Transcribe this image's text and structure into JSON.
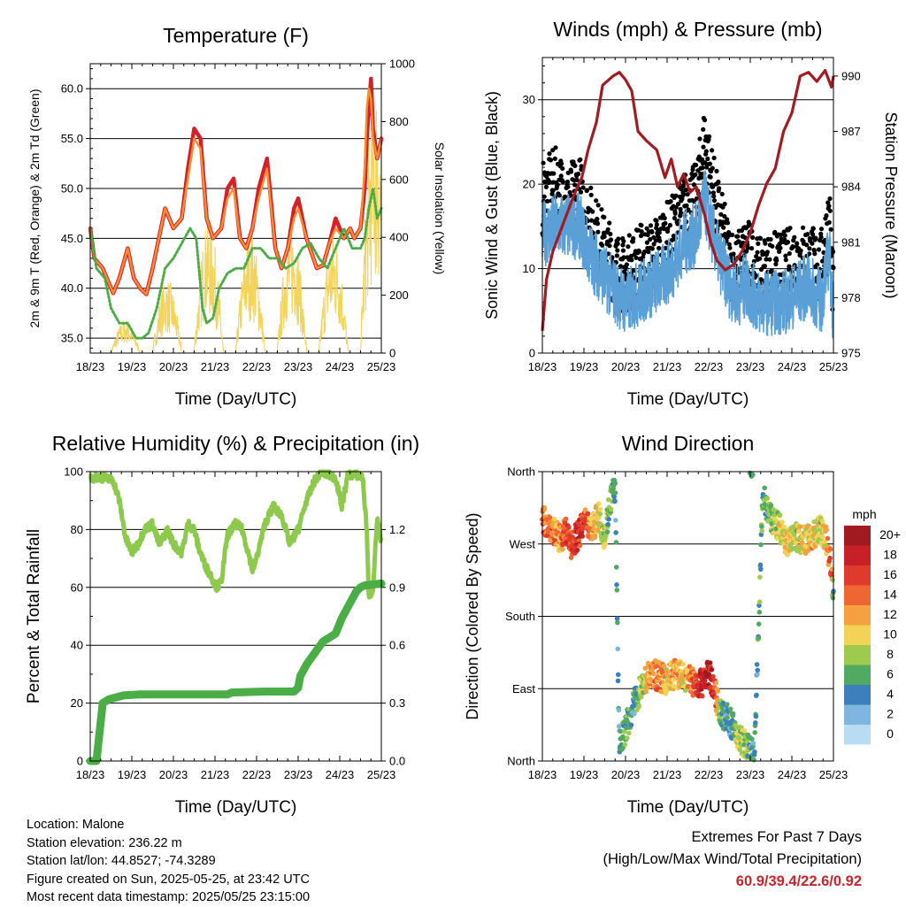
{
  "palette": {
    "red": "#d42027",
    "orange": "#f58d33",
    "green": "#4bab48",
    "yellow": "#f2d45c",
    "black": "#000000",
    "blue": "#5a9fd6",
    "maroon": "#a01c22",
    "rh": "#8cc94d",
    "rain": "#4aad45"
  },
  "chart_data": [
    {
      "id": "temperature",
      "type": "line",
      "title": "Temperature (F)",
      "xlabel": "Time (Day/UTC)",
      "ylabel": "2m & 9m T (Red, Orange) & 2m Td (Green)",
      "y2label": "Solar Insolation (Yellow)",
      "x_ticks": [
        "18/23",
        "19/23",
        "20/23",
        "21/23",
        "22/23",
        "23/23",
        "24/23",
        "25/23"
      ],
      "xlim": [
        0,
        7
      ],
      "ylim": [
        33.5,
        62.5
      ],
      "y_ticks": [
        "35.0",
        "40.0",
        "45.0",
        "50.0",
        "55.0",
        "60.0"
      ],
      "y2lim": [
        0,
        1000
      ],
      "y2_ticks": [
        "0",
        "200",
        "400",
        "600",
        "800",
        "1000"
      ],
      "series": [
        {
          "key": "t2m",
          "color": "red",
          "width": 4.5,
          "x": [
            0,
            0.1,
            0.3,
            0.55,
            0.7,
            0.9,
            1.05,
            1.2,
            1.35,
            1.5,
            1.7,
            1.8,
            2.0,
            2.2,
            2.35,
            2.5,
            2.65,
            2.8,
            2.95,
            3.15,
            3.3,
            3.45,
            3.6,
            3.75,
            3.9,
            4.05,
            4.25,
            4.45,
            4.6,
            4.75,
            4.9,
            5.0,
            5.2,
            5.45,
            5.6,
            5.75,
            5.9,
            6.1,
            6.25,
            6.35,
            6.5,
            6.6,
            6.65,
            6.7,
            6.75,
            6.8,
            6.9,
            7.0
          ],
          "y": [
            46,
            43,
            42,
            39.5,
            41,
            44,
            41,
            40,
            39.4,
            42,
            46,
            48,
            46,
            47,
            52,
            56,
            55,
            47,
            45,
            46,
            50,
            51,
            45,
            44,
            46,
            50,
            53,
            44,
            42,
            44,
            48,
            49,
            45,
            42,
            42.3,
            44.5,
            47,
            45,
            46,
            45,
            46,
            50,
            55,
            58,
            61,
            56,
            53,
            55
          ]
        },
        {
          "key": "t9m",
          "color": "orange",
          "width": 2.5,
          "x": [
            0,
            0.1,
            0.3,
            0.55,
            0.7,
            0.9,
            1.05,
            1.2,
            1.35,
            1.5,
            1.7,
            1.8,
            2.0,
            2.2,
            2.35,
            2.5,
            2.65,
            2.8,
            2.95,
            3.15,
            3.3,
            3.45,
            3.6,
            3.75,
            3.9,
            4.05,
            4.25,
            4.45,
            4.6,
            4.75,
            4.9,
            5.0,
            5.2,
            5.45,
            5.6,
            5.75,
            5.9,
            6.1,
            6.25,
            6.35,
            6.5,
            6.6,
            6.65,
            6.7,
            6.75,
            6.8,
            6.9,
            7.0
          ],
          "y": [
            46,
            43,
            42,
            39.5,
            41,
            44,
            41,
            40,
            39.4,
            42,
            46,
            48,
            46,
            47,
            51,
            55,
            54,
            47,
            45,
            46,
            49,
            50,
            45,
            44,
            46,
            49,
            52,
            44,
            42,
            44,
            47,
            48,
            45,
            42,
            42.3,
            44.5,
            46,
            45,
            46,
            45,
            46,
            52,
            58,
            60,
            59,
            55,
            53,
            55
          ]
        },
        {
          "key": "td2m",
          "color": "green",
          "width": 3,
          "dotted": true,
          "x": [
            0,
            0.15,
            0.35,
            0.5,
            0.7,
            0.9,
            1.1,
            1.25,
            1.4,
            1.6,
            1.8,
            2.0,
            2.2,
            2.4,
            2.55,
            2.7,
            2.8,
            2.95,
            3.1,
            3.3,
            3.5,
            3.7,
            3.9,
            4.1,
            4.3,
            4.5,
            4.7,
            4.9,
            5.1,
            5.3,
            5.5,
            5.7,
            5.9,
            6.1,
            6.3,
            6.5,
            6.6,
            6.7,
            6.8,
            6.9,
            7.0
          ],
          "y": [
            46,
            42,
            41,
            38,
            36.5,
            36.5,
            35,
            35,
            35.5,
            38,
            42,
            43,
            44.5,
            46,
            45,
            38,
            36.5,
            37,
            40,
            41.5,
            42,
            42,
            44,
            44,
            43,
            43,
            42,
            42.5,
            44,
            44.5,
            43,
            42,
            44,
            46,
            44,
            44,
            45,
            48,
            50,
            47,
            48
          ]
        }
      ],
      "solar": {
        "color": "yellow",
        "days": [
          0.85,
          1.85,
          2.85,
          3.85,
          4.85,
          5.85,
          6.85
        ],
        "peaks": [
          120,
          260,
          470,
          430,
          460,
          420,
          960
        ]
      }
    },
    {
      "id": "winds",
      "type": "scatter",
      "title": "Winds (mph) & Pressure (mb)",
      "xlabel": "Time (Day/UTC)",
      "ylabel": "Sonic Wind & Gust (Blue, Black)",
      "y2label": "Station Pressure (Maroon)",
      "x_ticks": [
        "18/23",
        "19/23",
        "20/23",
        "21/23",
        "22/23",
        "23/23",
        "24/23",
        "25/23"
      ],
      "xlim": [
        0,
        7
      ],
      "ylim": [
        0,
        35
      ],
      "y_ticks": [
        "0",
        "10",
        "20",
        "30"
      ],
      "y2lim": [
        975,
        991
      ],
      "y2_ticks": [
        "975",
        "978",
        "981",
        "984",
        "987",
        "990"
      ],
      "wind_mean": {
        "x": [
          0,
          0.3,
          0.6,
          0.9,
          1.1,
          1.5,
          1.8,
          2.0,
          2.3,
          2.6,
          2.9,
          3.1,
          3.4,
          3.7,
          3.9,
          4.2,
          4.5,
          4.7,
          4.9,
          5.2,
          5.5,
          5.8,
          6.1,
          6.4,
          6.7,
          6.9,
          7.0
        ],
        "y": [
          14,
          15,
          15,
          15,
          12,
          9,
          7,
          6,
          7,
          8,
          9,
          10,
          13,
          14,
          18,
          12,
          8,
          7,
          8,
          6,
          6,
          6,
          7,
          8,
          6,
          12,
          4
        ]
      },
      "gust_mean": {
        "x": [
          0,
          0.3,
          0.6,
          0.9,
          1.1,
          1.5,
          1.8,
          2.0,
          2.3,
          2.6,
          2.9,
          3.1,
          3.4,
          3.7,
          3.9,
          4.2,
          4.5,
          4.7,
          4.9,
          5.2,
          5.5,
          5.8,
          6.1,
          6.4,
          6.7,
          6.9,
          7.0
        ],
        "y": [
          18,
          20,
          18,
          19,
          16,
          12,
          10,
          9,
          11,
          11,
          13,
          14,
          17,
          18,
          25,
          17,
          11,
          10,
          12,
          9,
          10,
          10,
          11,
          11,
          10,
          16,
          7
        ]
      },
      "pressure": {
        "color": "maroon",
        "x": [
          0,
          0.1,
          0.25,
          0.5,
          0.75,
          0.95,
          1.1,
          1.3,
          1.45,
          1.7,
          1.85,
          2.0,
          2.15,
          2.3,
          2.5,
          2.75,
          2.95,
          3.1,
          3.25,
          3.4,
          3.55,
          3.7,
          3.9,
          4.05,
          4.2,
          4.4,
          4.6,
          4.8,
          5.0,
          5.2,
          5.4,
          5.6,
          5.8,
          6.0,
          6.2,
          6.4,
          6.6,
          6.8,
          6.95,
          7.0
        ],
        "y": [
          976.2,
          979,
          980.5,
          982,
          983.5,
          984.5,
          986,
          987.5,
          989.5,
          990,
          990.2,
          989.8,
          989.2,
          987,
          986.5,
          986,
          984.5,
          985.5,
          984,
          984.7,
          983.7,
          984,
          982.5,
          981,
          980,
          979.5,
          979.8,
          980.5,
          981.5,
          983,
          984.2,
          985,
          987,
          988,
          990,
          990.2,
          989.7,
          990.3,
          989.4,
          990
        ]
      }
    },
    {
      "id": "rh_precip",
      "type": "line",
      "title": "Relative Humidity (%) & Precipitation (in)",
      "xlabel": "Time (Day/UTC)",
      "ylabel": "Percent & Total Rainfall",
      "x_ticks": [
        "18/23",
        "19/23",
        "20/23",
        "21/23",
        "22/23",
        "23/23",
        "24/23",
        "25/23"
      ],
      "xlim": [
        0,
        7
      ],
      "ylim": [
        0,
        100
      ],
      "y_ticks": [
        "0",
        "20",
        "40",
        "60",
        "80",
        "100"
      ],
      "y2lim": [
        0,
        1.5
      ],
      "y2_ticks": [
        "0.0",
        "0.3",
        "0.6",
        "0.9",
        "1.2"
      ],
      "rh": {
        "color": "rh",
        "x": [
          0,
          0.3,
          0.55,
          0.7,
          0.85,
          1.0,
          1.15,
          1.3,
          1.5,
          1.65,
          1.75,
          1.85,
          2.0,
          2.2,
          2.35,
          2.5,
          2.6,
          2.75,
          2.9,
          3.05,
          3.15,
          3.3,
          3.5,
          3.65,
          3.8,
          3.9,
          4.0,
          4.2,
          4.4,
          4.6,
          4.8,
          5.0,
          5.2,
          5.4,
          5.55,
          5.7,
          5.9,
          6.05,
          6.2,
          6.4,
          6.55,
          6.65,
          6.7,
          6.8,
          6.9,
          7.0
        ],
        "y": [
          98,
          98,
          97,
          90,
          77,
          72,
          75,
          80,
          82,
          75,
          77,
          80,
          75,
          72,
          82,
          80,
          74,
          68,
          64,
          60,
          62,
          78,
          82,
          80,
          72,
          66,
          70,
          82,
          88,
          85,
          75,
          80,
          90,
          97,
          100,
          99,
          98,
          88,
          99,
          99,
          98,
          80,
          56,
          60,
          84,
          75
        ]
      },
      "rain": {
        "color": "rain",
        "x": [
          0,
          0.15,
          0.3,
          0.45,
          0.8,
          1.2,
          1.8,
          3.3,
          3.4,
          4.2,
          4.9,
          5.0,
          5.05,
          5.2,
          5.4,
          5.5,
          5.6,
          5.75,
          5.9,
          6.05,
          6.2,
          6.4,
          6.5,
          6.6,
          7.0
        ],
        "y": [
          0,
          0,
          0.3,
          0.32,
          0.34,
          0.345,
          0.345,
          0.345,
          0.355,
          0.36,
          0.36,
          0.38,
          0.44,
          0.5,
          0.56,
          0.59,
          0.62,
          0.64,
          0.66,
          0.74,
          0.8,
          0.88,
          0.9,
          0.91,
          0.92
        ]
      }
    },
    {
      "id": "wind_direction",
      "type": "scatter",
      "title": "Wind Direction",
      "xlabel": "Time (Day/UTC)",
      "ylabel": "Direction (Colored By Speed)",
      "x_ticks": [
        "18/23",
        "19/23",
        "20/23",
        "21/23",
        "22/23",
        "23/23",
        "24/23",
        "25/23"
      ],
      "xlim": [
        0,
        7
      ],
      "ylim": [
        0,
        360
      ],
      "y_ticks": [
        "North",
        "East",
        "South",
        "West",
        "North"
      ],
      "direction_track": {
        "x": [
          0,
          0.25,
          0.4,
          0.55,
          0.7,
          0.9,
          1.05,
          1.2,
          1.35,
          1.5,
          1.65,
          1.75,
          1.85,
          2.0,
          2.2,
          2.4,
          2.6,
          2.8,
          3.0,
          3.2,
          3.4,
          3.6,
          3.8,
          4.0,
          4.15,
          4.3,
          4.5,
          4.7,
          4.9,
          5.1,
          5.3,
          5.5,
          5.7,
          5.9,
          6.1,
          6.3,
          6.5,
          6.7,
          6.85,
          6.95,
          7.0
        ],
        "y": [
          300,
          290,
          275,
          285,
          270,
          285,
          300,
          290,
          305,
          280,
          330,
          340,
          20,
          40,
          70,
          95,
          110,
          105,
          100,
          110,
          105,
          100,
          95,
          110,
          85,
          60,
          50,
          30,
          20,
          5,
          330,
          300,
          290,
          270,
          280,
          275,
          280,
          290,
          270,
          240,
          200
        ],
        "speed": [
          14,
          13,
          12,
          15,
          16,
          17,
          14,
          12,
          10,
          8,
          6,
          5,
          4,
          6,
          5,
          8,
          12,
          14,
          10,
          12,
          10,
          14,
          18,
          19,
          16,
          5,
          4,
          9,
          7,
          4,
          6,
          7,
          9,
          11,
          9,
          10,
          11,
          8,
          12,
          16,
          4
        ]
      },
      "legend": {
        "title": "mph",
        "labels": [
          "20+",
          "18",
          "16",
          "14",
          "12",
          "10",
          "8",
          "6",
          "4",
          "2",
          "0"
        ],
        "colors": [
          "#a11a1f",
          "#c82027",
          "#e03a2c",
          "#ee6632",
          "#f5a141",
          "#f3d255",
          "#9ecb4f",
          "#51aa62",
          "#3b7fbd",
          "#7db6e0",
          "#b9dcf2"
        ]
      }
    }
  ],
  "info": {
    "location": "Location: Malone",
    "elevation": "Station elevation: 236.22 m",
    "latlon": "Station lat/lon: 44.8527; -74.3289",
    "created": "Figure created on Sun, 2025-05-25, at 23:42 UTC",
    "recent": "Most recent data timestamp: 2025/05/25 23:15:00"
  },
  "extremes": {
    "heading": "Extremes For Past 7 Days",
    "subheading": "(High/Low/Max Wind/Total Precipitation)",
    "values": "60.9/39.4/22.6/0.92"
  }
}
